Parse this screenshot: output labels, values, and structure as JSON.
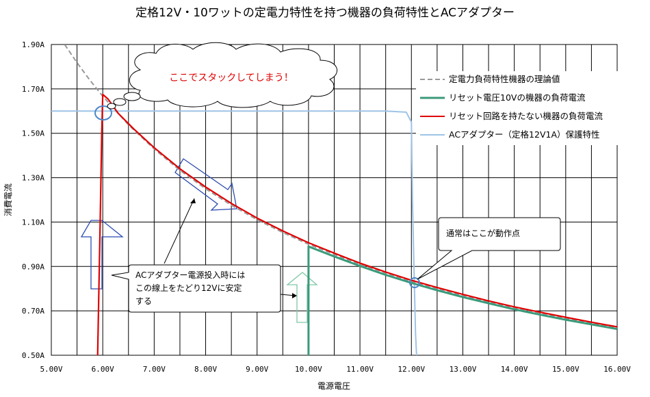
{
  "chart_data": {
    "type": "line",
    "title": "定格12V・10ワットの定電力特性を持つ機器の負荷特性とACアダプター",
    "xlabel": "電源電圧",
    "ylabel": "消費電流",
    "xlim": [
      5.0,
      16.0
    ],
    "ylim": [
      0.5,
      1.9
    ],
    "x_ticks": [
      "5.00V",
      "6.00V",
      "7.00V",
      "8.00V",
      "9.00V",
      "10.00V",
      "11.00V",
      "12.00V",
      "13.00V",
      "14.00V",
      "15.00V",
      "16.00V"
    ],
    "y_ticks": [
      "0.50A",
      "0.70A",
      "0.90A",
      "1.10A",
      "1.30A",
      "1.50A",
      "1.70A",
      "1.90A"
    ],
    "grid": true,
    "legend_position": "right",
    "series": [
      {
        "name": "定電力負荷特性機器の理論値",
        "color": "#999999",
        "style": "dashed",
        "x": [
          5.26,
          5.5,
          5.75,
          6.0,
          6.5,
          7.0,
          7.5,
          8.0,
          8.5,
          9.0,
          9.5,
          10.0,
          11.0,
          12.0,
          13.0,
          14.0,
          15.0,
          16.0
        ],
        "y": [
          1.9,
          1.818,
          1.739,
          1.667,
          1.538,
          1.429,
          1.333,
          1.25,
          1.176,
          1.111,
          1.053,
          1.0,
          0.909,
          0.833,
          0.769,
          0.714,
          0.667,
          0.625
        ]
      },
      {
        "name": "リセット電圧10Vの機器の負荷電流",
        "color": "#3a9a7a",
        "style": "solid",
        "x": [
          10.0,
          10.0,
          10.0,
          10.5,
          11.0,
          11.5,
          12.0,
          12.5,
          13.0,
          13.5,
          14.0,
          14.5,
          15.0,
          15.5,
          16.0
        ],
        "y": [
          0.5,
          0.75,
          0.99,
          0.945,
          0.902,
          0.862,
          0.826,
          0.793,
          0.762,
          0.734,
          0.707,
          0.683,
          0.66,
          0.639,
          0.618
        ]
      },
      {
        "name": "リセット回路を持たない機器の負荷電流",
        "color": "#e00000",
        "style": "solid",
        "x": [
          5.9,
          5.95,
          5.98,
          6.0,
          6.1,
          6.3,
          6.6,
          7.0,
          7.5,
          8.0,
          8.5,
          9.0,
          9.5,
          10.0,
          10.5,
          11.0,
          11.5,
          12.0,
          12.5,
          13.0,
          13.5,
          14.0,
          14.5,
          15.0,
          15.5,
          16.0
        ],
        "y": [
          0.5,
          1.1,
          1.5,
          1.675,
          1.655,
          1.59,
          1.52,
          1.435,
          1.34,
          1.258,
          1.184,
          1.118,
          1.06,
          1.007,
          0.96,
          0.915,
          0.875,
          0.838,
          0.805,
          0.774,
          0.745,
          0.718,
          0.694,
          0.671,
          0.649,
          0.628
        ]
      },
      {
        "name": "ACアダプター（定格12V1A）保護特性",
        "color": "#9dc3e6",
        "style": "solid",
        "x": [
          5.0,
          6.0,
          8.0,
          10.0,
          11.5,
          11.9,
          12.0,
          12.02,
          12.05,
          12.08,
          12.1
        ],
        "y": [
          1.6,
          1.6,
          1.6,
          1.6,
          1.6,
          1.595,
          1.55,
          1.2,
          0.9,
          0.6,
          0.5
        ]
      }
    ]
  },
  "annotations": {
    "cloud": "ここでスタックしてしまう！",
    "adapter_note": [
      "ACアダプター電源投入時には",
      "この線上をたどり12Vに安定",
      "する"
    ],
    "operating_point": "通常はここが動作点"
  }
}
